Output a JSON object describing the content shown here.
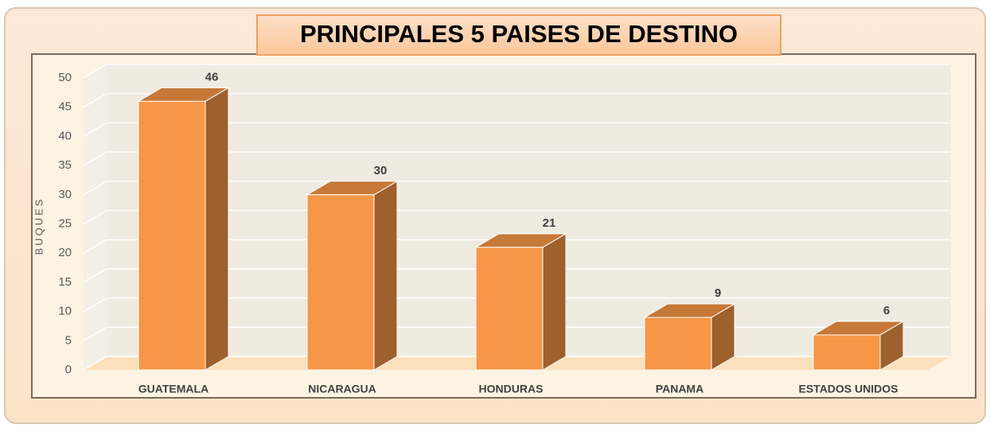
{
  "chart_data": {
    "type": "bar3d",
    "title": "PRINCIPALES 5 PAISES DE DESTINO",
    "y_label": "BUQUES",
    "categories": [
      "GUATEMALA",
      "NICARAGUA",
      "HONDURAS",
      "PANAMA",
      "ESTADOS UNIDOS"
    ],
    "values": [
      46,
      30,
      21,
      9,
      6
    ],
    "color": "#f79646",
    "ylim": [
      0,
      50
    ],
    "yticks": [
      0,
      5,
      10,
      15,
      20,
      25,
      30,
      35,
      40,
      45,
      50
    ],
    "grid": true
  }
}
